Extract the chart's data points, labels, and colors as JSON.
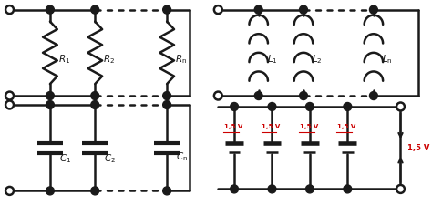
{
  "bg_color": "#ffffff",
  "line_color": "#1a1a1a",
  "red_color": "#cc0000",
  "lw": 1.8,
  "figsize": [
    4.74,
    2.25
  ],
  "dpi": 100
}
